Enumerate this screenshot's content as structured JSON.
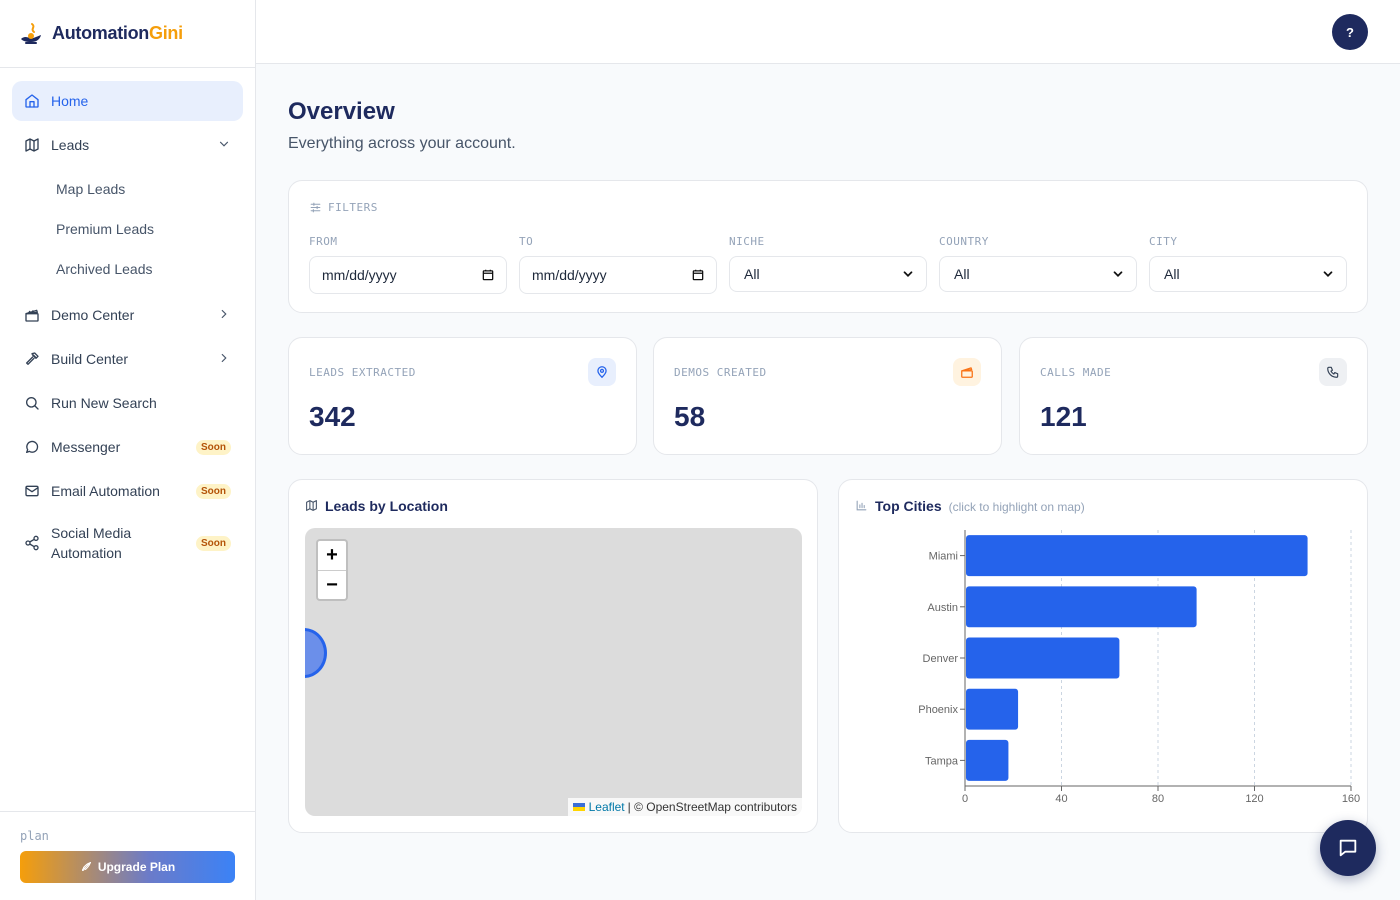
{
  "brand": {
    "name_part1": "Automation",
    "name_part2": "Gini"
  },
  "sidebar": {
    "home": "Home",
    "leads": "Leads",
    "leads_sub": [
      "Map Leads",
      "Premium Leads",
      "Archived Leads"
    ],
    "demo_center": "Demo Center",
    "build_center": "Build Center",
    "run_new_search": "Run New Search",
    "messenger": "Messenger",
    "email_automation": "Email Automation",
    "social_media_line1": "Social Media",
    "social_media_line2": "Automation",
    "soon_badge": "Soon",
    "plan_label": "plan",
    "upgrade_label": "Upgrade Plan"
  },
  "topbar": {
    "help": "?"
  },
  "overview": {
    "title": "Overview",
    "subtitle": "Everything across your account."
  },
  "filters": {
    "title": "FILTERS",
    "from_label": "FROM",
    "from_value": "mm/dd/yyyy",
    "to_label": "TO",
    "to_value": "mm/dd/yyyy",
    "niche_label": "NICHE",
    "niche_value": "All",
    "country_label": "COUNTRY",
    "country_value": "All",
    "city_label": "CITY",
    "city_value": "All"
  },
  "stats": [
    {
      "label": "LEADS EXTRACTED",
      "value": "342"
    },
    {
      "label": "DEMOS CREATED",
      "value": "58"
    },
    {
      "label": "CALLS MADE",
      "value": "121"
    }
  ],
  "map_panel": {
    "title": "Leads by Location",
    "zoom_in": "+",
    "zoom_out": "−",
    "attribution_link": "Leaflet",
    "attribution_text": "| © OpenStreetMap contributors"
  },
  "cities_panel": {
    "title": "Top Cities",
    "hint": "(click to highlight on map)"
  },
  "chart_data": {
    "type": "bar",
    "orientation": "horizontal",
    "categories": [
      "Miami",
      "Austin",
      "Denver",
      "Phoenix",
      "Tampa"
    ],
    "values": [
      142,
      96,
      64,
      22,
      18
    ],
    "xlim": [
      0,
      160
    ],
    "xticks": [
      0,
      40,
      80,
      120,
      160
    ],
    "grid": true,
    "bar_color": "#2563eb"
  },
  "colors": {
    "navy": "#1e2a5e",
    "accent": "#2563eb",
    "orange": "#f59e0b"
  }
}
